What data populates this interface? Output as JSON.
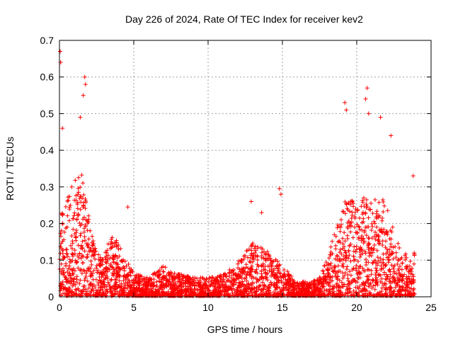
{
  "chart_data": {
    "type": "scatter",
    "title": "Day 226 of 2024, Rate Of TEC Index for receiver kev2",
    "xlabel": "GPS time / hours",
    "ylabel": "ROTI / TECUs",
    "xlim": [
      0,
      25
    ],
    "ylim": [
      0,
      0.7
    ],
    "xticks": [
      "0",
      "5",
      "10",
      "15",
      "20",
      "25"
    ],
    "yticks": [
      "0",
      "0.1",
      "0.2",
      "0.3",
      "0.4",
      "0.5",
      "0.6",
      "0.7"
    ],
    "grid": true,
    "marker": "+",
    "color": "#ff0000",
    "peaks": [
      {
        "x": 0.05,
        "y": 0.67
      },
      {
        "x": 0.08,
        "y": 0.64
      },
      {
        "x": 1.7,
        "y": 0.6
      },
      {
        "x": 1.75,
        "y": 0.58
      },
      {
        "x": 1.6,
        "y": 0.55
      },
      {
        "x": 1.4,
        "y": 0.49
      },
      {
        "x": 0.2,
        "y": 0.46
      },
      {
        "x": 20.7,
        "y": 0.57
      },
      {
        "x": 20.6,
        "y": 0.54
      },
      {
        "x": 19.2,
        "y": 0.53
      },
      {
        "x": 19.3,
        "y": 0.51
      },
      {
        "x": 21.6,
        "y": 0.49
      },
      {
        "x": 20.8,
        "y": 0.5
      },
      {
        "x": 22.3,
        "y": 0.44
      },
      {
        "x": 4.6,
        "y": 0.245
      },
      {
        "x": 14.8,
        "y": 0.295
      },
      {
        "x": 14.9,
        "y": 0.28
      },
      {
        "x": 12.9,
        "y": 0.26
      },
      {
        "x": 13.6,
        "y": 0.23
      },
      {
        "x": 23.8,
        "y": 0.33
      }
    ],
    "envelope": [
      {
        "x": 0.0,
        "level": 0.22
      },
      {
        "x": 0.5,
        "level": 0.26
      },
      {
        "x": 1.0,
        "level": 0.3
      },
      {
        "x": 1.5,
        "level": 0.33
      },
      {
        "x": 2.0,
        "level": 0.2
      },
      {
        "x": 2.5,
        "level": 0.11
      },
      {
        "x": 3.0,
        "level": 0.11
      },
      {
        "x": 3.5,
        "level": 0.16
      },
      {
        "x": 4.0,
        "level": 0.14
      },
      {
        "x": 4.5,
        "level": 0.1
      },
      {
        "x": 5.0,
        "level": 0.06
      },
      {
        "x": 6.0,
        "level": 0.05
      },
      {
        "x": 7.0,
        "level": 0.08
      },
      {
        "x": 8.0,
        "level": 0.06
      },
      {
        "x": 9.0,
        "level": 0.05
      },
      {
        "x": 10.0,
        "level": 0.05
      },
      {
        "x": 11.0,
        "level": 0.06
      },
      {
        "x": 12.0,
        "level": 0.09
      },
      {
        "x": 13.0,
        "level": 0.14
      },
      {
        "x": 14.0,
        "level": 0.12
      },
      {
        "x": 15.0,
        "level": 0.08
      },
      {
        "x": 16.0,
        "level": 0.04
      },
      {
        "x": 17.0,
        "level": 0.04
      },
      {
        "x": 17.5,
        "level": 0.05
      },
      {
        "x": 18.0,
        "level": 0.1
      },
      {
        "x": 18.5,
        "level": 0.17
      },
      {
        "x": 19.0,
        "level": 0.24
      },
      {
        "x": 19.5,
        "level": 0.26
      },
      {
        "x": 20.0,
        "level": 0.24
      },
      {
        "x": 20.5,
        "level": 0.26
      },
      {
        "x": 21.0,
        "level": 0.25
      },
      {
        "x": 21.5,
        "level": 0.27
      },
      {
        "x": 22.0,
        "level": 0.24
      },
      {
        "x": 22.5,
        "level": 0.17
      },
      {
        "x": 23.0,
        "level": 0.12
      },
      {
        "x": 23.5,
        "level": 0.11
      },
      {
        "x": 23.9,
        "level": 0.12
      }
    ],
    "point_count": 3200
  }
}
